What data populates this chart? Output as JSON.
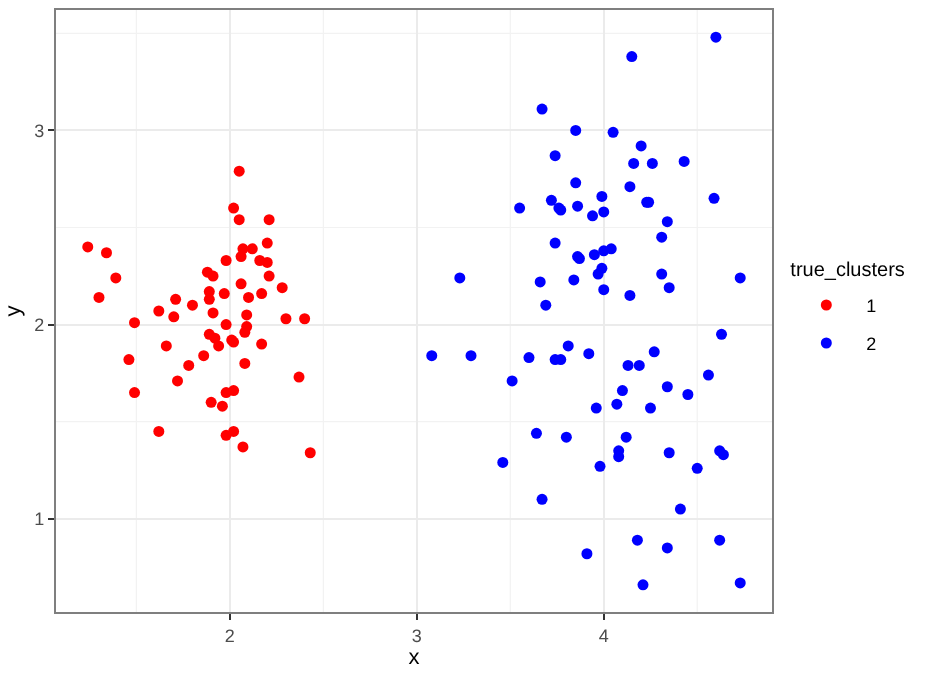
{
  "chart_data": {
    "type": "scatter",
    "xlabel": "x",
    "ylabel": "y",
    "legend_title": "true_clusters",
    "legend": "right",
    "grid": true,
    "marker": "circle",
    "xlim": [
      1.07,
      4.9
    ],
    "ylim": [
      0.52,
      3.62
    ],
    "xticks": [
      2,
      3,
      4
    ],
    "yticks": [
      1,
      2,
      3
    ],
    "series": [
      {
        "name": "1",
        "color": "#ff0000",
        "x": [
          1.24,
          1.34,
          1.39,
          1.3,
          1.49,
          1.46,
          1.49,
          1.62,
          1.62,
          1.66,
          1.71,
          1.7,
          1.72,
          1.78,
          1.8,
          1.86,
          1.88,
          1.91,
          1.89,
          1.89,
          1.91,
          1.89,
          1.92,
          1.94,
          1.9,
          1.96,
          1.98,
          1.97,
          1.98,
          1.98,
          1.98,
          2.02,
          2.05,
          2.05,
          2.06,
          2.07,
          2.12,
          2.06,
          2.01,
          2.02,
          2.02,
          2.02,
          2.07,
          2.08,
          2.09,
          2.09,
          2.1,
          2.08,
          2.16,
          2.2,
          2.2,
          2.21,
          2.21,
          2.17,
          2.17,
          2.28,
          2.3,
          2.4,
          2.37,
          2.43
        ],
        "values": [
          2.4,
          2.37,
          2.24,
          2.14,
          2.01,
          1.82,
          1.65,
          1.45,
          2.07,
          1.89,
          2.13,
          2.04,
          1.71,
          1.79,
          2.1,
          1.84,
          2.27,
          2.25,
          2.17,
          2.13,
          2.06,
          1.95,
          1.93,
          1.89,
          1.6,
          1.58,
          2.33,
          2.16,
          2.0,
          1.65,
          1.43,
          2.6,
          2.54,
          2.79,
          2.35,
          2.39,
          2.39,
          2.21,
          1.92,
          1.91,
          1.66,
          1.45,
          1.37,
          1.96,
          1.99,
          2.05,
          2.14,
          1.8,
          2.33,
          2.32,
          2.42,
          2.54,
          2.25,
          2.16,
          1.9,
          2.19,
          2.03,
          2.03,
          1.73,
          1.34
        ]
      },
      {
        "name": "2",
        "color": "#0000ff",
        "x": [
          3.08,
          3.23,
          3.29,
          3.51,
          3.46,
          3.55,
          3.6,
          3.67,
          3.67,
          3.64,
          3.66,
          3.69,
          3.72,
          3.74,
          3.74,
          3.74,
          3.77,
          3.76,
          3.77,
          3.81,
          3.8,
          3.85,
          3.85,
          3.84,
          3.86,
          3.87,
          3.86,
          3.91,
          3.92,
          3.94,
          3.95,
          3.96,
          3.98,
          3.97,
          3.99,
          3.99,
          4.0,
          4.0,
          4.0,
          4.04,
          4.05,
          4.07,
          4.08,
          4.08,
          4.1,
          4.12,
          4.13,
          4.14,
          4.14,
          4.15,
          4.16,
          4.18,
          4.19,
          4.2,
          4.21,
          4.23,
          4.24,
          4.25,
          4.26,
          4.27,
          4.31,
          4.31,
          4.34,
          4.34,
          4.35,
          4.35,
          4.34,
          4.41,
          4.43,
          4.45,
          4.5,
          4.56,
          4.59,
          4.6,
          4.62,
          4.62,
          4.64,
          4.63,
          4.73,
          4.73
        ],
        "values": [
          1.84,
          2.24,
          1.84,
          1.71,
          1.29,
          2.6,
          1.83,
          3.11,
          1.1,
          1.44,
          2.22,
          2.1,
          2.64,
          2.87,
          2.42,
          1.82,
          1.82,
          2.6,
          2.59,
          1.89,
          1.42,
          3.0,
          2.73,
          2.23,
          2.35,
          2.34,
          2.61,
          0.82,
          1.85,
          2.56,
          2.36,
          1.57,
          1.27,
          2.26,
          2.29,
          2.66,
          2.58,
          2.38,
          2.18,
          2.39,
          2.99,
          1.59,
          1.35,
          1.32,
          1.66,
          1.42,
          1.79,
          2.71,
          2.15,
          3.38,
          2.83,
          0.89,
          1.79,
          2.92,
          0.66,
          2.63,
          2.63,
          1.57,
          2.83,
          1.86,
          2.45,
          2.26,
          2.53,
          1.68,
          2.19,
          1.34,
          0.85,
          1.05,
          2.84,
          1.64,
          1.26,
          1.74,
          2.65,
          3.48,
          0.89,
          1.35,
          1.33,
          1.95,
          2.24,
          0.67
        ]
      }
    ]
  }
}
